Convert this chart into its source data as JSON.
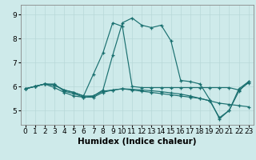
{
  "xlabel": "Humidex (Indice chaleur)",
  "background_color": "#ceeaea",
  "line_color": "#1a7070",
  "xlim": [
    -0.5,
    23.5
  ],
  "ylim": [
    4.4,
    9.4
  ],
  "xticks": [
    0,
    1,
    2,
    3,
    4,
    5,
    6,
    7,
    8,
    9,
    10,
    11,
    12,
    13,
    14,
    15,
    16,
    17,
    18,
    19,
    20,
    21,
    22,
    23
  ],
  "yticks": [
    5,
    6,
    7,
    8,
    9
  ],
  "lines": [
    {
      "x": [
        0,
        1,
        2,
        3,
        4,
        5,
        6,
        7,
        8,
        9,
        10,
        11,
        12,
        13,
        14,
        15,
        16,
        17,
        18,
        19,
        20,
        21,
        22,
        23
      ],
      "y": [
        5.9,
        6.0,
        6.1,
        6.1,
        5.8,
        5.7,
        5.55,
        5.6,
        5.85,
        7.3,
        8.65,
        8.85,
        8.55,
        8.45,
        8.55,
        7.9,
        6.25,
        6.2,
        6.1,
        5.45,
        4.65,
        5.0,
        5.8,
        6.2
      ]
    },
    {
      "x": [
        0,
        1,
        2,
        3,
        4,
        5,
        6,
        7,
        8,
        9,
        10,
        11,
        12,
        13,
        14,
        15,
        16,
        17,
        18,
        19,
        20,
        21,
        22,
        23
      ],
      "y": [
        5.9,
        6.0,
        6.1,
        6.05,
        5.85,
        5.75,
        5.6,
        6.5,
        7.4,
        8.65,
        8.5,
        6.0,
        5.95,
        5.95,
        5.95,
        5.95,
        5.95,
        5.95,
        5.95,
        5.95,
        5.95,
        5.95,
        5.85,
        6.15
      ]
    },
    {
      "x": [
        0,
        1,
        2,
        3,
        4,
        5,
        6,
        7,
        8,
        9,
        10,
        11,
        12,
        13,
        14,
        15,
        16,
        17,
        18,
        19,
        20,
        21,
        22,
        23
      ],
      "y": [
        5.9,
        6.0,
        6.1,
        5.95,
        5.75,
        5.6,
        5.55,
        5.55,
        5.75,
        5.85,
        5.9,
        5.85,
        5.8,
        5.75,
        5.7,
        5.65,
        5.6,
        5.55,
        5.5,
        5.4,
        5.3,
        5.25,
        5.2,
        5.15
      ]
    },
    {
      "x": [
        0,
        1,
        2,
        3,
        4,
        5,
        6,
        7,
        8,
        9,
        10,
        11,
        12,
        13,
        14,
        15,
        16,
        17,
        18,
        19,
        20,
        21,
        22,
        23
      ],
      "y": [
        5.9,
        6.0,
        6.1,
        6.05,
        5.85,
        5.75,
        5.6,
        5.6,
        5.8,
        5.85,
        5.9,
        5.88,
        5.85,
        5.82,
        5.78,
        5.73,
        5.68,
        5.6,
        5.5,
        5.4,
        4.7,
        5.0,
        5.9,
        6.2
      ]
    }
  ],
  "grid_color": "#b8d8d8",
  "tick_fontsize": 6.5,
  "label_fontsize": 7.5
}
